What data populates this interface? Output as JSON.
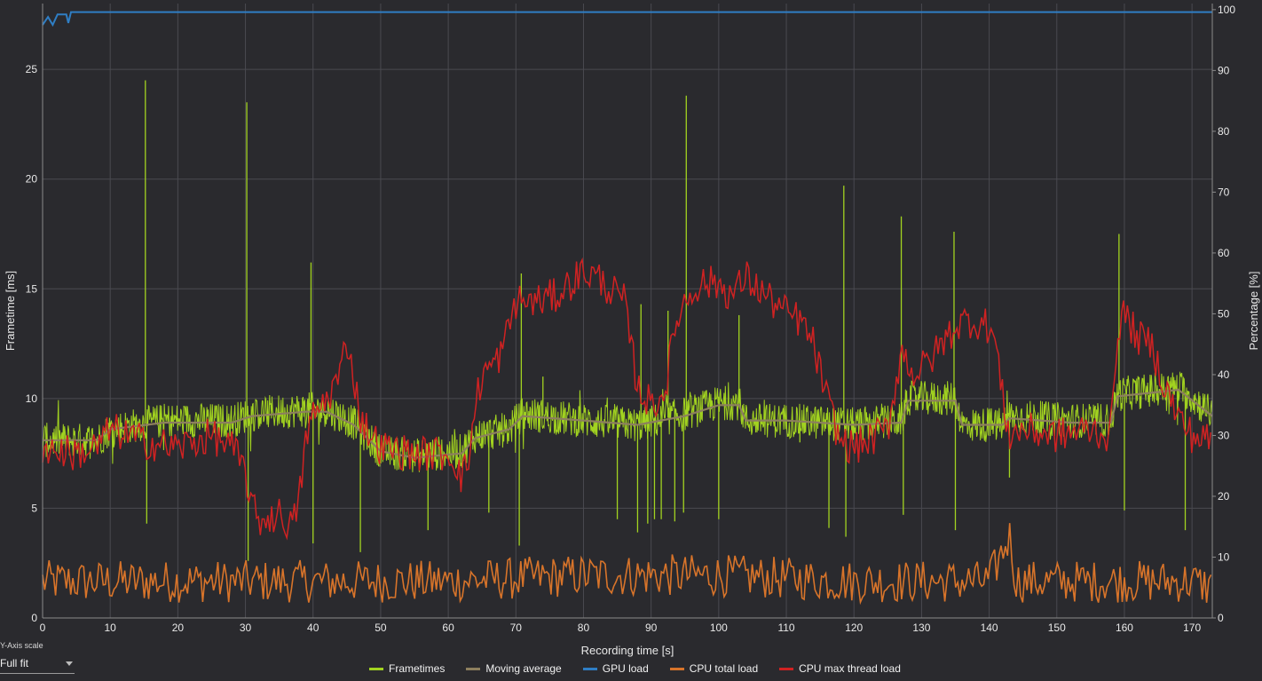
{
  "chart_data": {
    "type": "line",
    "xlabel": "Recording time [s]",
    "ylabel_left": "Frametime [ms]",
    "ylabel_right": "Percentage [%]",
    "xlim": [
      0,
      173
    ],
    "ylim_left": [
      0,
      28
    ],
    "ylim_right": [
      0,
      101
    ],
    "x_ticks": [
      0,
      10,
      20,
      30,
      40,
      50,
      60,
      70,
      80,
      90,
      100,
      110,
      120,
      130,
      140,
      150,
      160,
      170
    ],
    "y_ticks_left": [
      0,
      5,
      10,
      15,
      20,
      25
    ],
    "y_ticks_right": [
      0,
      10,
      20,
      30,
      40,
      50,
      60,
      70,
      80,
      90,
      100
    ],
    "grid": true,
    "legend_position": "bottom-center",
    "series": [
      {
        "name": "Frametimes",
        "axis": "left",
        "color": "#a2d320",
        "baseline": [
          [
            0,
            8.1
          ],
          [
            8,
            8.1
          ],
          [
            10,
            8.6
          ],
          [
            18,
            9.0
          ],
          [
            28,
            9.0
          ],
          [
            31,
            9.3
          ],
          [
            39,
            9.5
          ],
          [
            42,
            9.5
          ],
          [
            46,
            8.9
          ],
          [
            50,
            7.6
          ],
          [
            55,
            7.4
          ],
          [
            62,
            7.6
          ],
          [
            64,
            8.3
          ],
          [
            69,
            8.6
          ],
          [
            71,
            9.3
          ],
          [
            80,
            9.0
          ],
          [
            88,
            8.8
          ],
          [
            95,
            9.3
          ],
          [
            100,
            9.8
          ],
          [
            103,
            9.8
          ],
          [
            104,
            9.0
          ],
          [
            110,
            9.0
          ],
          [
            120,
            8.8
          ],
          [
            127,
            9.0
          ],
          [
            128,
            10.0
          ],
          [
            135,
            10.0
          ],
          [
            136,
            8.8
          ],
          [
            142,
            8.8
          ],
          [
            143,
            9.2
          ],
          [
            152,
            9.0
          ],
          [
            158,
            9.0
          ],
          [
            159,
            10.2
          ],
          [
            168,
            10.5
          ],
          [
            173,
            9.3
          ]
        ],
        "spikes": [
          [
            15.2,
            24.5
          ],
          [
            15.4,
            4.3
          ],
          [
            30.2,
            23.5
          ],
          [
            30.4,
            2.6
          ],
          [
            39.7,
            16.2
          ],
          [
            40.0,
            3.4
          ],
          [
            47.0,
            3.0
          ],
          [
            57.0,
            4.0
          ],
          [
            66.0,
            4.8
          ],
          [
            70.5,
            3.3
          ],
          [
            70.8,
            15.7
          ],
          [
            74.0,
            11.0
          ],
          [
            85.0,
            4.5
          ],
          [
            88.0,
            3.9
          ],
          [
            88.5,
            14.3
          ],
          [
            89.5,
            4.3
          ],
          [
            90.5,
            4.5
          ],
          [
            91.5,
            4.5
          ],
          [
            92.5,
            14.0
          ],
          [
            93.5,
            4.4
          ],
          [
            94.8,
            4.8
          ],
          [
            95.2,
            23.8
          ],
          [
            100.0,
            4.5
          ],
          [
            103.0,
            13.8
          ],
          [
            112.0,
            8.0
          ],
          [
            116.3,
            4.1
          ],
          [
            118.5,
            19.7
          ],
          [
            118.8,
            3.7
          ],
          [
            127.0,
            18.3
          ],
          [
            127.3,
            4.7
          ],
          [
            134.8,
            17.6
          ],
          [
            135.0,
            4.0
          ],
          [
            143.0,
            6.4
          ],
          [
            159.2,
            17.5
          ],
          [
            160.0,
            4.9
          ],
          [
            169.0,
            4.0
          ]
        ]
      },
      {
        "name": "Moving average",
        "axis": "left",
        "color": "#8d7f5e",
        "points": [
          [
            0,
            8.1
          ],
          [
            8,
            8.1
          ],
          [
            10,
            8.6
          ],
          [
            18,
            8.9
          ],
          [
            28,
            8.9
          ],
          [
            31,
            9.2
          ],
          [
            39,
            9.4
          ],
          [
            42,
            9.4
          ],
          [
            46,
            8.8
          ],
          [
            50,
            7.6
          ],
          [
            55,
            7.3
          ],
          [
            62,
            7.5
          ],
          [
            64,
            8.2
          ],
          [
            69,
            8.6
          ],
          [
            71,
            9.2
          ],
          [
            80,
            9.0
          ],
          [
            88,
            8.8
          ],
          [
            95,
            9.2
          ],
          [
            100,
            9.7
          ],
          [
            103,
            9.7
          ],
          [
            104,
            9.0
          ],
          [
            110,
            9.0
          ],
          [
            120,
            8.8
          ],
          [
            127,
            8.9
          ],
          [
            128,
            9.9
          ],
          [
            135,
            9.9
          ],
          [
            136,
            8.8
          ],
          [
            142,
            8.8
          ],
          [
            143,
            9.1
          ],
          [
            152,
            8.9
          ],
          [
            158,
            8.9
          ],
          [
            159,
            10.1
          ],
          [
            168,
            10.4
          ],
          [
            173,
            9.2
          ]
        ]
      },
      {
        "name": "GPU load",
        "axis": "right",
        "color": "#2f7ec4",
        "points": [
          [
            0,
            97.5
          ],
          [
            0.8,
            98.8
          ],
          [
            1.5,
            97.5
          ],
          [
            2.2,
            99.2
          ],
          [
            3.5,
            99.2
          ],
          [
            3.8,
            97.8
          ],
          [
            4.2,
            99.6
          ],
          [
            173,
            99.6
          ]
        ]
      },
      {
        "name": "CPU total load",
        "axis": "right",
        "color": "#d8742a",
        "points": [
          [
            0,
            6
          ],
          [
            10,
            6
          ],
          [
            20,
            6
          ],
          [
            30,
            6
          ],
          [
            40,
            6
          ],
          [
            50,
            6
          ],
          [
            60,
            6
          ],
          [
            70,
            6.5
          ],
          [
            80,
            7
          ],
          [
            90,
            7
          ],
          [
            100,
            7
          ],
          [
            110,
            6.5
          ],
          [
            120,
            6
          ],
          [
            130,
            6
          ],
          [
            140,
            6
          ],
          [
            143,
            13.5
          ],
          [
            144,
            6
          ],
          [
            150,
            6
          ],
          [
            160,
            6
          ],
          [
            170,
            6
          ],
          [
            173,
            5
          ]
        ]
      },
      {
        "name": "CPU max thread load",
        "axis": "right",
        "color": "#d02222",
        "points": [
          [
            0,
            28
          ],
          [
            5,
            27
          ],
          [
            8,
            28
          ],
          [
            10,
            31
          ],
          [
            15,
            29
          ],
          [
            20,
            28
          ],
          [
            25,
            30
          ],
          [
            28,
            28
          ],
          [
            30,
            24
          ],
          [
            31,
            18
          ],
          [
            32,
            16
          ],
          [
            35,
            17
          ],
          [
            37,
            15
          ],
          [
            38,
            20
          ],
          [
            39,
            30
          ],
          [
            40,
            33
          ],
          [
            42,
            36
          ],
          [
            44,
            40
          ],
          [
            45,
            46
          ],
          [
            46,
            40
          ],
          [
            47,
            33
          ],
          [
            48,
            31
          ],
          [
            50,
            28
          ],
          [
            55,
            27
          ],
          [
            60,
            27
          ],
          [
            61,
            26
          ],
          [
            62,
            23
          ],
          [
            63,
            26
          ],
          [
            64,
            35
          ],
          [
            65,
            40
          ],
          [
            67,
            42
          ],
          [
            68,
            44
          ],
          [
            70,
            52
          ],
          [
            73,
            52
          ],
          [
            76,
            53
          ],
          [
            78,
            55
          ],
          [
            80,
            57
          ],
          [
            82,
            56
          ],
          [
            84,
            54
          ],
          [
            86,
            52
          ],
          [
            88,
            38
          ],
          [
            90,
            35
          ],
          [
            92,
            37
          ],
          [
            93,
            44
          ],
          [
            94,
            50
          ],
          [
            95,
            52
          ],
          [
            97,
            55
          ],
          [
            100,
            55
          ],
          [
            102,
            53
          ],
          [
            104,
            56
          ],
          [
            106,
            54
          ],
          [
            108,
            52
          ],
          [
            110,
            50
          ],
          [
            112,
            49
          ],
          [
            114,
            45
          ],
          [
            116,
            36
          ],
          [
            118,
            29
          ],
          [
            120,
            28
          ],
          [
            122,
            29
          ],
          [
            125,
            31
          ],
          [
            127,
            44
          ],
          [
            129,
            40
          ],
          [
            131,
            42
          ],
          [
            133,
            45
          ],
          [
            135,
            48
          ],
          [
            137,
            49
          ],
          [
            140,
            48
          ],
          [
            141,
            45
          ],
          [
            142,
            36
          ],
          [
            143,
            30
          ],
          [
            145,
            31
          ],
          [
            150,
            30
          ],
          [
            155,
            31
          ],
          [
            158,
            30
          ],
          [
            159,
            48
          ],
          [
            160,
            50
          ],
          [
            162,
            46
          ],
          [
            164,
            45
          ],
          [
            166,
            38
          ],
          [
            168,
            33
          ],
          [
            170,
            30
          ],
          [
            173,
            29
          ]
        ]
      }
    ]
  },
  "controls": {
    "scale_caption": "Y-Axis scale",
    "scale_value": "Full fit"
  }
}
